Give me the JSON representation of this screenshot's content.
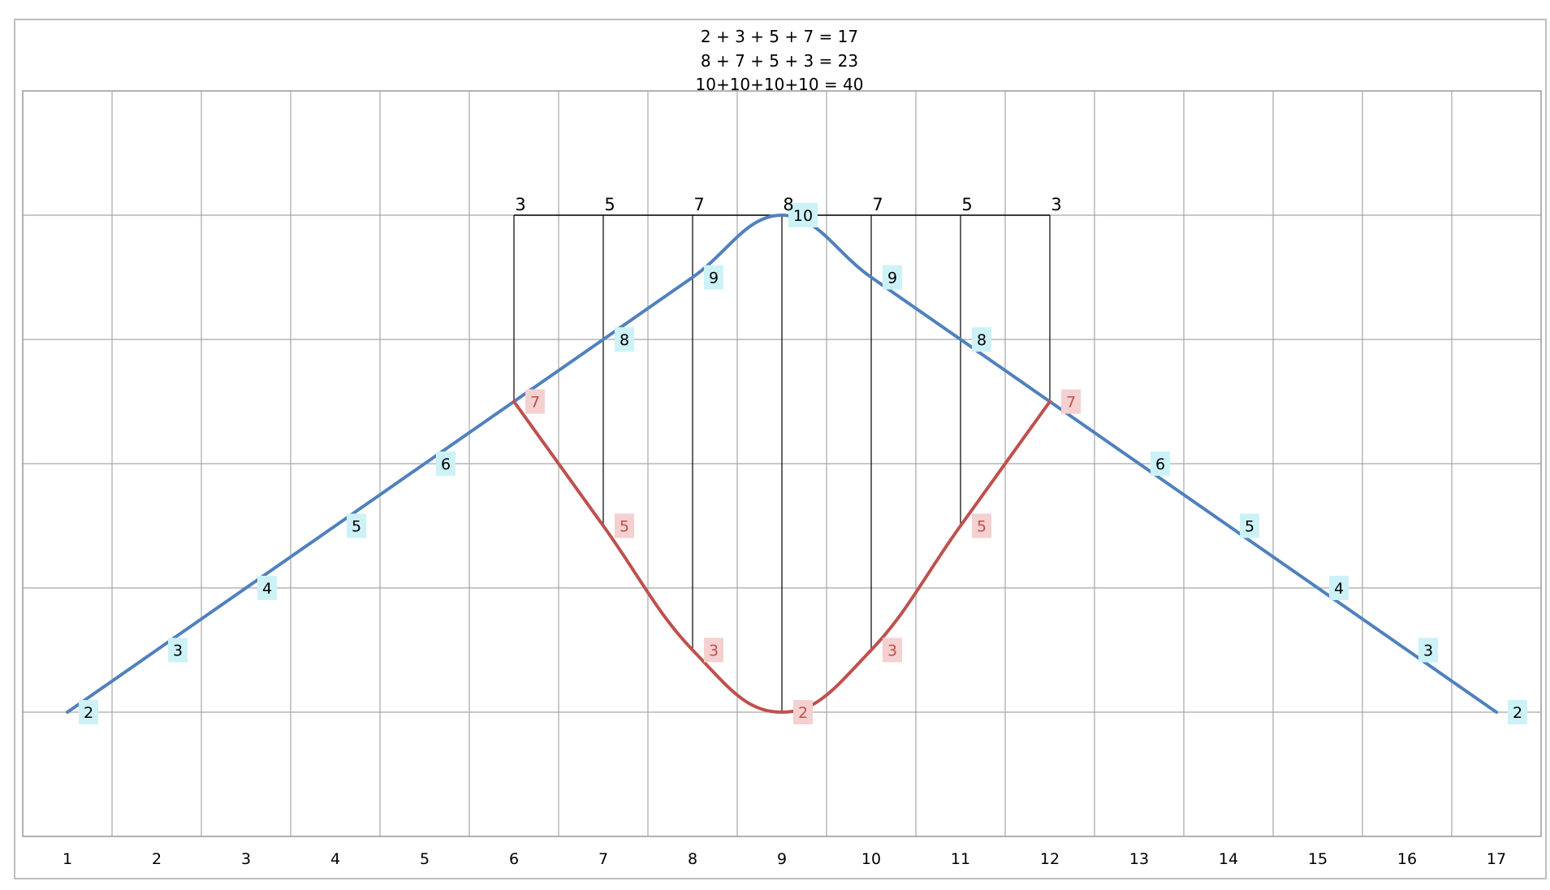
{
  "chart_data": {
    "type": "line",
    "title_lines": [
      "2 + 3 + 5 + 7 = 17",
      "8 + 7 + 5 + 3 = 23",
      "10+10+10+10 = 40"
    ],
    "x_ticks": [
      "1",
      "2",
      "3",
      "4",
      "5",
      "6",
      "7",
      "8",
      "9",
      "10",
      "11",
      "12",
      "13",
      "14",
      "15",
      "16",
      "17"
    ],
    "xlim": [
      0.5,
      17.5
    ],
    "ylim": [
      0,
      12
    ],
    "grid": true,
    "series": [
      {
        "color": "#4f81bd",
        "x": [
          1,
          2,
          3,
          4,
          5,
          6,
          7,
          8,
          9,
          10,
          11,
          12,
          13,
          14,
          15,
          16,
          17
        ],
        "values": [
          2,
          3,
          4,
          5,
          6,
          7,
          8,
          9,
          10,
          9,
          8,
          7,
          6,
          5,
          4,
          3,
          2
        ],
        "labels": [
          "2",
          "3",
          "4",
          "5",
          "6",
          "7",
          "8",
          "9",
          "10",
          "9",
          "8",
          "7",
          "6",
          "5",
          "4",
          "3",
          "2"
        ],
        "label_bg": "#ccf2f7",
        "label_color": "#000000"
      },
      {
        "color": "#c0504d",
        "x": [
          6,
          7,
          8,
          9,
          10,
          11,
          12
        ],
        "values": [
          7,
          5,
          3,
          2,
          3,
          5,
          7
        ],
        "labels": [
          "7",
          "5",
          "3",
          "2",
          "3",
          "5",
          "7"
        ],
        "label_bg": "#f4d0d0",
        "label_color": "#c0504d"
      }
    ],
    "top_bar": {
      "y": 10,
      "x_start": 6,
      "x_end": 12,
      "labels": [
        {
          "x": 6,
          "text": "3"
        },
        {
          "x": 7,
          "text": "5"
        },
        {
          "x": 8,
          "text": "7"
        },
        {
          "x": 9,
          "text": "8"
        },
        {
          "x": 10,
          "text": "7"
        },
        {
          "x": 11,
          "text": "5"
        },
        {
          "x": 12,
          "text": "3"
        }
      ]
    }
  }
}
